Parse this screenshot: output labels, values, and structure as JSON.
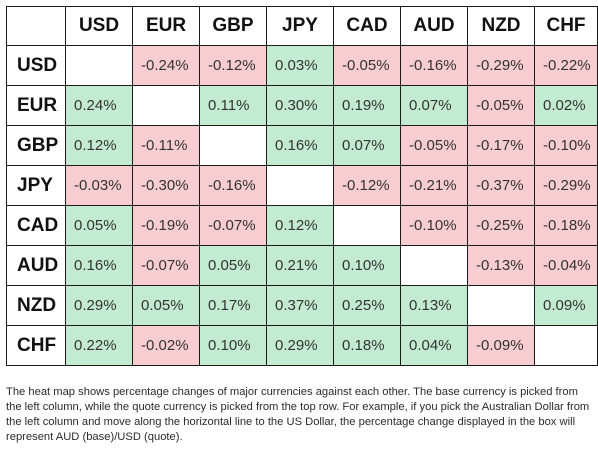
{
  "chart_data": {
    "type": "heatmap",
    "x_categories": [
      "USD",
      "EUR",
      "GBP",
      "JPY",
      "CAD",
      "AUD",
      "NZD",
      "CHF"
    ],
    "y_categories": [
      "USD",
      "EUR",
      "GBP",
      "JPY",
      "CAD",
      "AUD",
      "NZD",
      "CHF"
    ],
    "values": [
      [
        null,
        -0.24,
        -0.12,
        0.03,
        -0.05,
        -0.16,
        -0.29,
        -0.22
      ],
      [
        0.24,
        null,
        0.11,
        0.3,
        0.19,
        0.07,
        -0.05,
        0.02
      ],
      [
        0.12,
        -0.11,
        null,
        0.16,
        0.07,
        -0.05,
        -0.17,
        -0.1
      ],
      [
        -0.03,
        -0.3,
        -0.16,
        null,
        -0.12,
        -0.21,
        -0.37,
        -0.29
      ],
      [
        0.05,
        -0.19,
        -0.07,
        0.12,
        null,
        -0.1,
        -0.25,
        -0.18
      ],
      [
        0.16,
        -0.07,
        0.05,
        0.21,
        0.1,
        null,
        -0.13,
        -0.04
      ],
      [
        0.29,
        0.05,
        0.17,
        0.37,
        0.25,
        0.13,
        null,
        0.09
      ],
      [
        0.22,
        -0.02,
        0.1,
        0.29,
        0.18,
        0.04,
        -0.09,
        null
      ]
    ],
    "value_format": "percent_2dp",
    "colors": {
      "positive": "#c3ebd2",
      "negative": "#f8cdd1",
      "empty": "#ffffff",
      "border": "#1a1a1a"
    }
  },
  "footnote": "The heat map shows percentage changes of major currencies against each other. The base currency is picked from the left column, while the quote currency is picked from the top row. For example, if you pick the Australian Dollar from the left column and move along the horizontal line to the US Dollar, the percentage change displayed in the box will represent AUD (base)/USD (quote)."
}
